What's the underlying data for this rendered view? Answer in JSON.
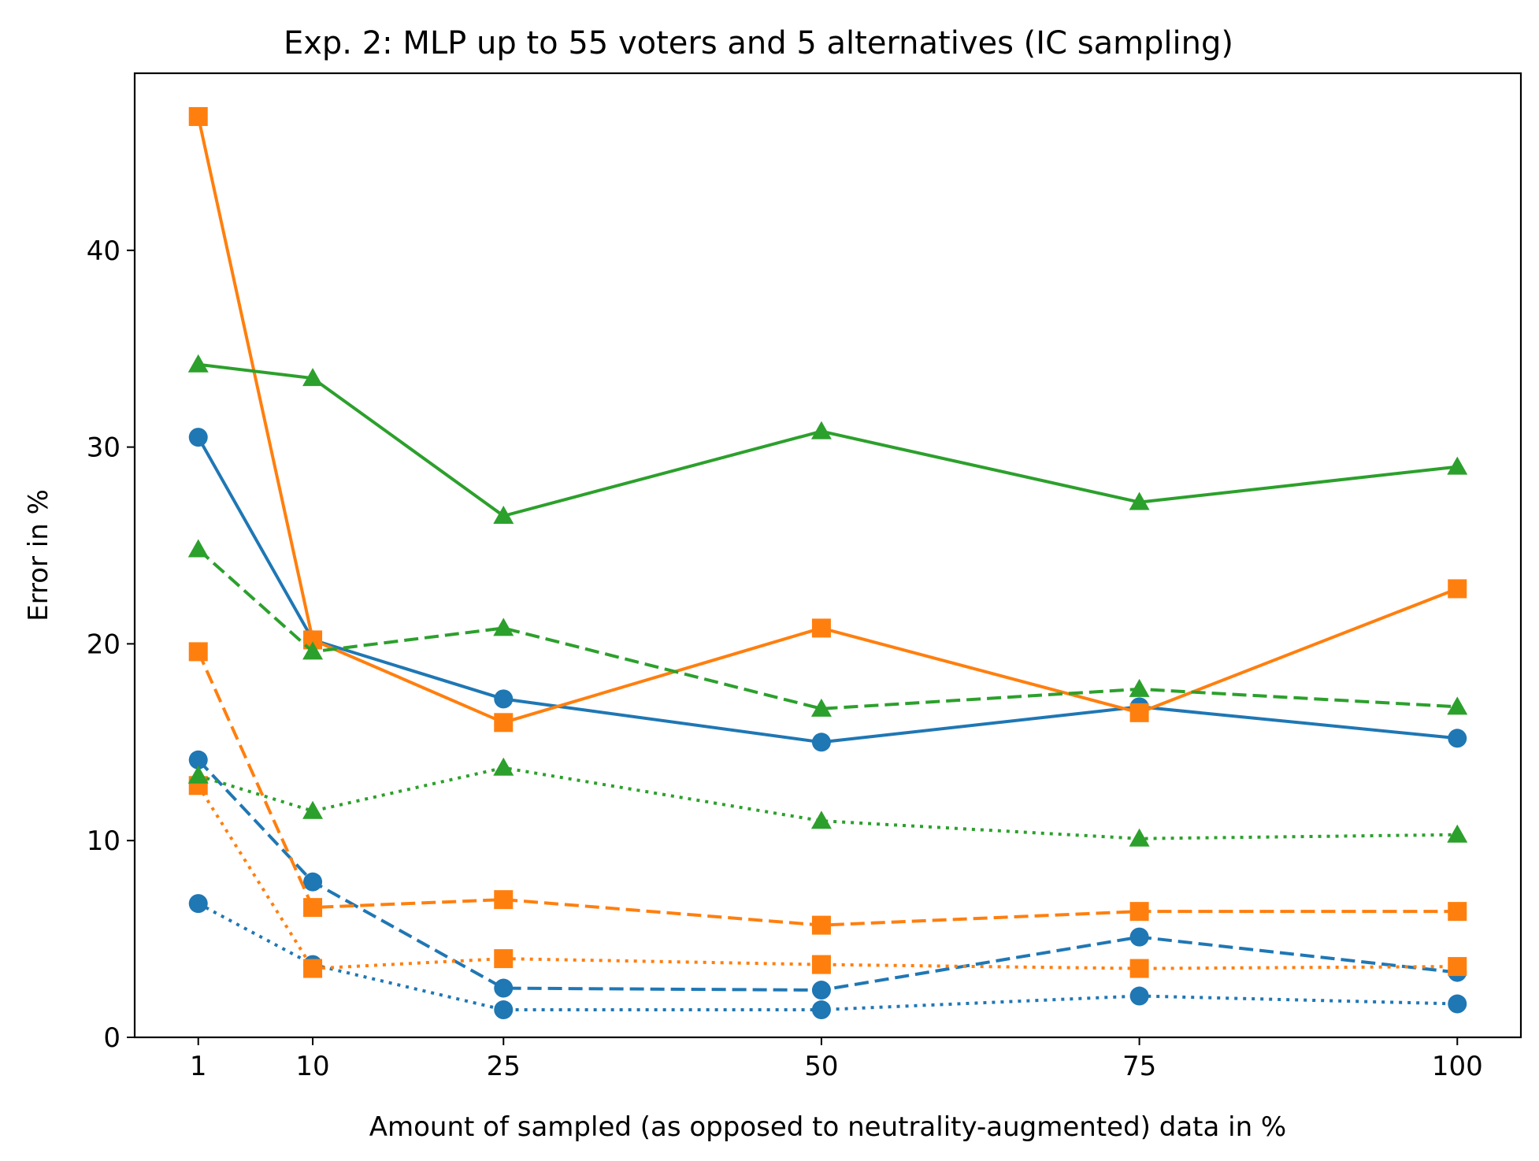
{
  "chart_data": {
    "type": "line",
    "title": "Exp. 2: MLP up to 55 voters and 5 alternatives (IC sampling)",
    "xlabel": "Amount of sampled (as opposed to neutrality-augmented) data in %",
    "ylabel": "Error in %",
    "x": [
      1,
      10,
      25,
      50,
      75,
      100
    ],
    "xticks": [
      1,
      10,
      25,
      50,
      75,
      100
    ],
    "yticks": [
      0,
      10,
      20,
      30,
      40
    ],
    "xlim": [
      -4,
      105
    ],
    "ylim": [
      0,
      49
    ],
    "grid": false,
    "series": [
      {
        "name": "blue-solid",
        "color": "#1f77b4",
        "linestyle": "solid",
        "marker": "circle",
        "values": [
          30.5,
          20.2,
          17.2,
          15.0,
          16.8,
          15.2
        ]
      },
      {
        "name": "blue-dashed",
        "color": "#1f77b4",
        "linestyle": "dashed",
        "marker": "circle",
        "values": [
          14.1,
          7.9,
          2.5,
          2.4,
          5.1,
          3.3
        ]
      },
      {
        "name": "blue-dotted",
        "color": "#1f77b4",
        "linestyle": "dotted",
        "marker": "circle",
        "values": [
          6.8,
          3.7,
          1.4,
          1.4,
          2.1,
          1.7
        ]
      },
      {
        "name": "orange-solid",
        "color": "#ff7f0e",
        "linestyle": "solid",
        "marker": "square",
        "values": [
          46.8,
          20.2,
          16.0,
          20.8,
          16.5,
          22.8
        ]
      },
      {
        "name": "orange-dashed",
        "color": "#ff7f0e",
        "linestyle": "dashed",
        "marker": "square",
        "values": [
          19.6,
          6.6,
          7.0,
          5.7,
          6.4,
          6.4
        ]
      },
      {
        "name": "orange-dotted",
        "color": "#ff7f0e",
        "linestyle": "dotted",
        "marker": "square",
        "values": [
          12.8,
          3.5,
          4.0,
          3.7,
          3.5,
          3.6
        ]
      },
      {
        "name": "green-solid",
        "color": "#2ca02c",
        "linestyle": "solid",
        "marker": "triangle",
        "values": [
          34.2,
          33.5,
          26.5,
          30.8,
          27.2,
          29.0
        ]
      },
      {
        "name": "green-dashed",
        "color": "#2ca02c",
        "linestyle": "dashed",
        "marker": "triangle",
        "values": [
          24.8,
          19.6,
          20.8,
          16.7,
          17.7,
          16.8
        ]
      },
      {
        "name": "green-dotted",
        "color": "#2ca02c",
        "linestyle": "dotted",
        "marker": "triangle",
        "values": [
          13.3,
          11.5,
          13.7,
          11.0,
          10.1,
          10.3
        ]
      }
    ]
  }
}
